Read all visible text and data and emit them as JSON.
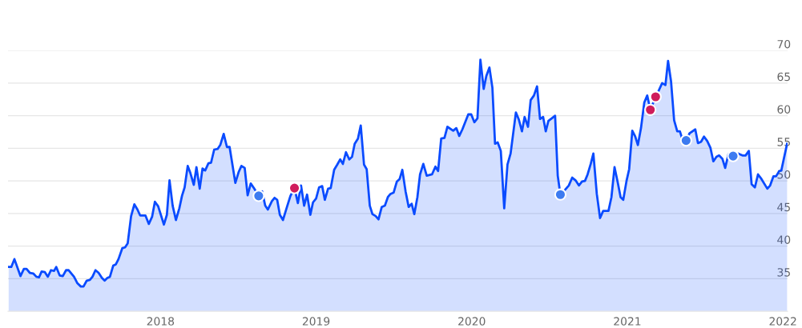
{
  "chart_data": {
    "type": "area",
    "xlim": [
      2017.02,
      2022.03
    ],
    "xticks": [
      2018,
      2019,
      2020,
      2021,
      2022
    ],
    "ylim": [
      30,
      70
    ],
    "yticks": [
      35,
      40,
      45,
      50,
      55,
      60,
      65,
      70
    ],
    "grid": "y",
    "series": [
      {
        "color": "#0a4bff",
        "marker": "none",
        "x": [
          2017.024,
          2017.041,
          2017.061,
          2017.1,
          2017.122,
          2017.139,
          2017.16,
          2017.182,
          2017.202,
          2017.219,
          2017.236,
          2017.257,
          2017.276,
          2017.296,
          2017.316,
          2017.33,
          2017.352,
          2017.372,
          2017.393,
          2017.41,
          2017.444,
          2017.466,
          2017.488,
          2017.505,
          2017.526,
          2017.546,
          2017.563,
          2017.582,
          2017.602,
          2017.624,
          2017.641,
          2017.658,
          2017.675,
          2017.696,
          2017.713,
          2017.73,
          2017.755,
          2017.772,
          2017.789,
          2017.811,
          2017.832,
          2017.852,
          2017.869,
          2017.903,
          2017.925,
          2017.946,
          2017.964,
          2017.985,
          2018.022,
          2018.041,
          2018.058,
          2018.078,
          2018.099,
          2018.121,
          2018.138,
          2018.155,
          2018.175,
          2018.192,
          2018.214,
          2018.231,
          2018.252,
          2018.27,
          2018.287,
          2018.308,
          2018.325,
          2018.345,
          2018.367,
          2018.384,
          2018.406,
          2018.427,
          2018.444,
          2018.481,
          2018.503,
          2018.52,
          2018.541,
          2018.56,
          2018.58,
          2018.6,
          2018.631,
          2018.653,
          2018.673,
          2018.69,
          2018.716,
          2018.733,
          2018.75,
          2018.767,
          2018.787,
          2018.81,
          2018.835,
          2018.861,
          2018.883,
          2018.903,
          2018.923,
          2018.942,
          2018.963,
          2018.98,
          2019.0,
          2019.019,
          2019.039,
          2019.056,
          2019.077,
          2019.094,
          2019.116,
          2019.136,
          2019.155,
          2019.172,
          2019.192,
          2019.213,
          2019.231,
          2019.248,
          2019.269,
          2019.287,
          2019.308,
          2019.325,
          2019.345,
          2019.362,
          2019.383,
          2019.401,
          2019.422,
          2019.442,
          2019.461,
          2019.478,
          2019.498,
          2019.519,
          2019.537,
          2019.554,
          2019.575,
          2019.595,
          2019.614,
          2019.631,
          2019.651,
          2019.668,
          2019.689,
          2019.711,
          2019.745,
          2019.767,
          2019.784,
          2019.804,
          2019.825,
          2019.844,
          2019.881,
          2019.901,
          2019.92,
          2019.94,
          2019.978,
          2019.997,
          2020.017,
          2020.037,
          2020.056,
          2020.077,
          2020.094,
          2020.114,
          2020.133,
          2020.15,
          2020.167,
          2020.187,
          2020.209,
          2020.23,
          2020.25,
          2020.284,
          2020.303,
          2020.323,
          2020.34,
          2020.362,
          2020.379,
          2020.4,
          2020.42,
          2020.439,
          2020.459,
          2020.476,
          2020.493,
          2020.515,
          2020.536,
          2020.553,
          2020.57,
          2020.595,
          2020.624,
          2020.646,
          2020.667,
          2020.689,
          2020.709,
          2020.728,
          2020.745,
          2020.765,
          2020.782,
          2020.804,
          2020.825,
          2020.845,
          2020.879,
          2020.898,
          2020.918,
          2020.939,
          2020.957,
          2020.974,
          2020.995,
          2021.012,
          2021.032,
          2021.051,
          2021.068,
          2021.088,
          2021.109,
          2021.128,
          2021.148,
          2021.182,
          2021.199,
          2021.224,
          2021.245,
          2021.262,
          2021.281,
          2021.301,
          2021.321,
          2021.338,
          2021.355,
          2021.378,
          2021.4,
          2021.437,
          2021.454,
          2021.474,
          2021.493,
          2021.514,
          2021.534,
          2021.553,
          2021.573,
          2021.59,
          2021.611,
          2021.629,
          2021.65,
          2021.68,
          2021.713,
          2021.74,
          2021.76,
          2021.781,
          2021.799,
          2021.82,
          2021.84,
          2021.862,
          2021.9,
          2021.918,
          2021.939,
          2021.956,
          2021.976,
          2021.99,
          2022.007,
          2022.027
        ],
        "values": [
          36.8,
          36.8,
          38.0,
          35.4,
          36.5,
          36.5,
          35.9,
          35.8,
          35.3,
          35.2,
          36.1,
          36.0,
          35.3,
          36.3,
          36.2,
          36.8,
          35.5,
          35.4,
          36.3,
          36.3,
          35.3,
          34.3,
          33.8,
          33.8,
          34.7,
          34.8,
          35.3,
          36.3,
          35.9,
          35.1,
          34.7,
          35.1,
          35.3,
          37.0,
          37.2,
          38.0,
          39.7,
          39.8,
          40.4,
          44.6,
          46.4,
          45.6,
          44.7,
          44.7,
          43.4,
          44.5,
          46.8,
          46.1,
          43.3,
          44.8,
          50.1,
          46.2,
          44.0,
          45.8,
          47.7,
          49.0,
          52.3,
          51.2,
          49.4,
          52.1,
          48.8,
          51.9,
          51.6,
          52.7,
          52.8,
          54.8,
          54.9,
          55.5,
          57.2,
          55.2,
          55.2,
          49.7,
          51.4,
          52.3,
          52.0,
          47.8,
          49.6,
          48.9,
          47.7,
          48.4,
          46.2,
          45.6,
          46.9,
          47.4,
          47.1,
          44.8,
          44.0,
          45.8,
          47.7,
          48.9,
          46.6,
          49.3,
          46.2,
          47.9,
          44.8,
          46.7,
          47.3,
          49.0,
          49.2,
          47.1,
          48.8,
          48.9,
          51.7,
          52.5,
          53.3,
          52.6,
          54.4,
          53.3,
          53.7,
          55.7,
          56.5,
          58.5,
          52.5,
          51.8,
          46.2,
          44.9,
          44.6,
          44.1,
          46.0,
          46.2,
          47.5,
          48.0,
          48.2,
          49.9,
          50.3,
          51.7,
          48.4,
          46.0,
          46.5,
          44.9,
          47.5,
          51.0,
          52.6,
          50.8,
          51.0,
          52.2,
          51.5,
          56.5,
          56.6,
          58.3,
          57.7,
          58.1,
          56.9,
          57.9,
          60.2,
          60.2,
          59.0,
          59.6,
          68.6,
          64.1,
          66.1,
          67.4,
          64.3,
          55.7,
          55.9,
          54.6,
          45.8,
          52.5,
          54.2,
          60.5,
          59.4,
          57.6,
          59.8,
          58.3,
          62.4,
          63.1,
          64.5,
          59.5,
          59.8,
          57.6,
          59.2,
          59.6,
          60.0,
          50.8,
          47.9,
          48.5,
          49.3,
          50.5,
          50.1,
          49.3,
          49.9,
          50.0,
          51.0,
          52.6,
          54.2,
          48.0,
          44.3,
          45.4,
          45.4,
          47.5,
          52.1,
          49.7,
          47.5,
          47.1,
          50.0,
          51.8,
          57.7,
          56.8,
          55.5,
          58.1,
          62.0,
          63.1,
          60.9,
          62.9,
          63.7,
          65.0,
          64.7,
          68.4,
          65.3,
          59.3,
          57.6,
          57.6,
          56.3,
          56.2,
          57.3,
          57.9,
          55.8,
          56.0,
          56.8,
          56.1,
          55.1,
          53.0,
          53.7,
          53.9,
          53.4,
          52.0,
          54.1,
          53.8,
          54.2,
          53.9,
          53.9,
          54.6,
          49.5,
          49.0,
          51.0,
          50.3,
          48.8,
          49.3,
          50.7,
          50.7,
          51.5,
          51.6,
          53.5,
          55.7
        ]
      },
      {
        "type": "scatter",
        "color": "#3d7bf0",
        "marker": "circle",
        "x": [
          2018.631,
          2020.57,
          2021.378,
          2021.68
        ],
        "values": [
          47.7,
          47.9,
          56.2,
          53.8
        ]
      },
      {
        "type": "scatter",
        "color": "#d01c5b",
        "marker": "circle",
        "x": [
          2018.861,
          2021.148,
          2021.182
        ],
        "values": [
          48.9,
          60.9,
          62.9
        ]
      }
    ]
  }
}
